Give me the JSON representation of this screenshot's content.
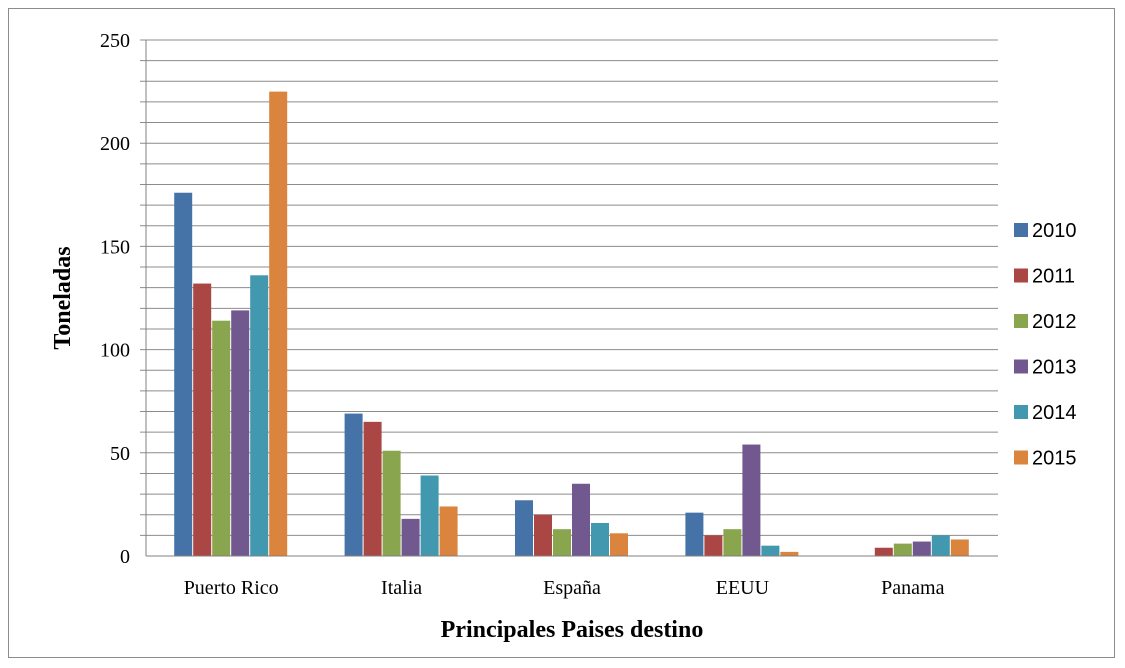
{
  "chart_data": {
    "type": "bar",
    "title": "",
    "xlabel": "Principales Paises destino",
    "ylabel": "Toneladas",
    "categories": [
      "Puerto Rico",
      "Italia",
      "España",
      "EEUU",
      "Panama"
    ],
    "ylim": [
      0,
      250
    ],
    "yticks": [
      0,
      50,
      100,
      150,
      200,
      250
    ],
    "minor_gridline_step": 10,
    "grid": true,
    "legend_position": "right",
    "series": [
      {
        "name": "2010",
        "color": "#4572a7",
        "values": [
          176,
          69,
          27,
          21,
          0
        ]
      },
      {
        "name": "2011",
        "color": "#aa4643",
        "values": [
          132,
          65,
          20,
          10,
          4
        ]
      },
      {
        "name": "2012",
        "color": "#89a54e",
        "values": [
          114,
          51,
          13,
          13,
          6
        ]
      },
      {
        "name": "2013",
        "color": "#71588f",
        "values": [
          119,
          18,
          35,
          54,
          7
        ]
      },
      {
        "name": "2014",
        "color": "#4198af",
        "values": [
          136,
          39,
          16,
          5,
          10
        ]
      },
      {
        "name": "2015",
        "color": "#db843d",
        "values": [
          225,
          24,
          11,
          2,
          8
        ]
      }
    ]
  }
}
